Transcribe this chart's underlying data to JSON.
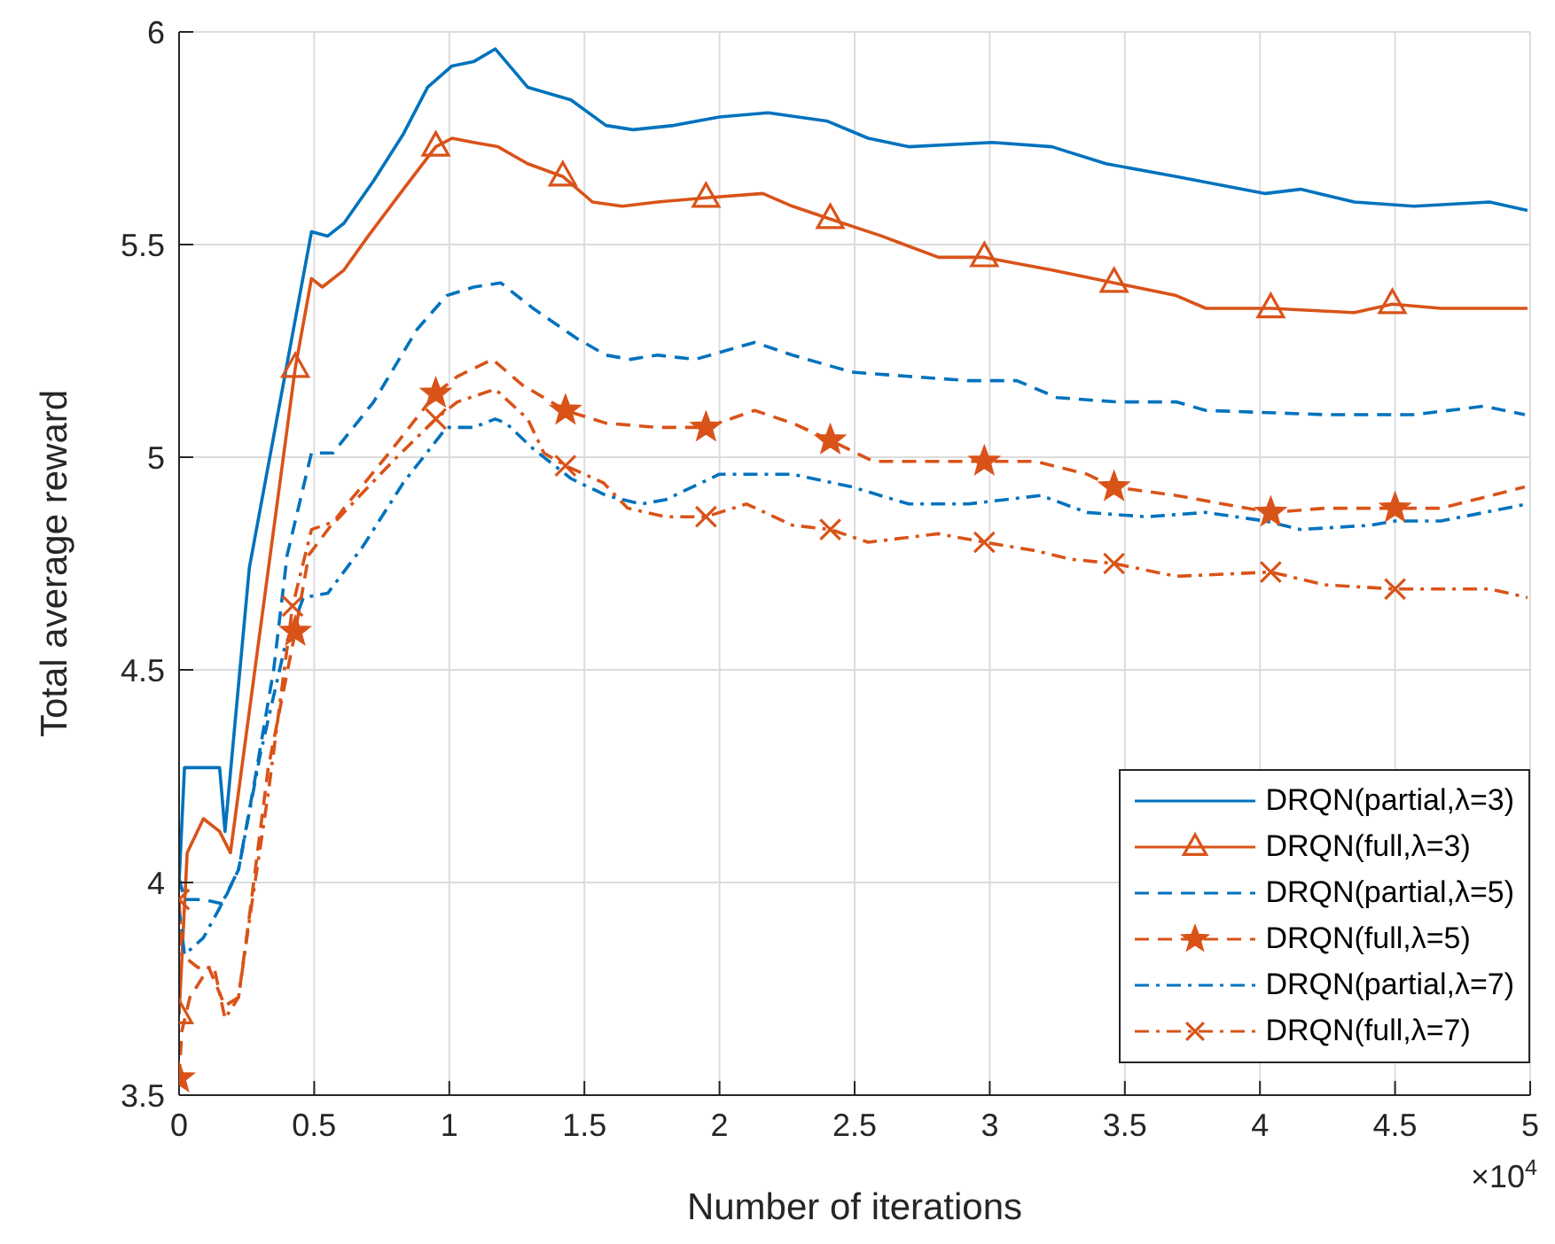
{
  "chart_data": {
    "type": "line",
    "xlabel": "Number of iterations",
    "ylabel": "Total average reward",
    "annotations": [
      "×10$^{4}$"
    ],
    "xlim": [
      0,
      5
    ],
    "xticks": [
      0,
      0.5,
      1,
      1.5,
      2,
      2.5,
      3,
      3.5,
      4,
      4.5,
      5
    ],
    "ylim": [
      3.5,
      6
    ],
    "yticks": [
      3.5,
      4,
      4.5,
      5,
      5.5,
      6
    ],
    "grid": true,
    "legend": "bottom right",
    "series": [
      {
        "name": "DRQN(partial,λ=3)",
        "color": "#0072bd",
        "line_style": "solid",
        "x": [
          0,
          0.02,
          0.15,
          0.17,
          0.26,
          0.49,
          0.55,
          0.61,
          0.72,
          0.83,
          0.92,
          1.01,
          1.09,
          1.17,
          1.29,
          1.45,
          1.58,
          1.68,
          1.83,
          2.0,
          2.18,
          2.4,
          2.55,
          2.7,
          3.01,
          3.23,
          3.43,
          3.69,
          4.02,
          4.15,
          4.35,
          4.57,
          4.85,
          4.99
        ],
        "values": [
          4.0,
          4.27,
          4.27,
          4.12,
          4.74,
          5.53,
          5.52,
          5.55,
          5.65,
          5.76,
          5.87,
          5.92,
          5.93,
          5.96,
          5.87,
          5.84,
          5.78,
          5.77,
          5.78,
          5.8,
          5.81,
          5.79,
          5.75,
          5.73,
          5.74,
          5.73,
          5.69,
          5.66,
          5.62,
          5.63,
          5.6,
          5.59,
          5.6,
          5.58
        ]
      },
      {
        "name": "DRQN(full,λ=3)",
        "color": "#d95319",
        "line_style": "solid",
        "x": [
          0,
          0.03,
          0.09,
          0.15,
          0.19,
          0.43,
          0.49,
          0.53,
          0.61,
          0.7,
          0.83,
          0.95,
          1.01,
          1.09,
          1.18,
          1.29,
          1.42,
          1.53,
          1.64,
          1.77,
          1.95,
          2.16,
          2.27,
          2.41,
          2.6,
          2.81,
          2.98,
          3.23,
          3.46,
          3.69,
          3.8,
          4.04,
          4.35,
          4.49,
          4.67,
          4.99
        ],
        "values": [
          3.69,
          4.07,
          4.15,
          4.12,
          4.07,
          5.21,
          5.42,
          5.4,
          5.44,
          5.52,
          5.63,
          5.73,
          5.75,
          5.74,
          5.73,
          5.69,
          5.66,
          5.6,
          5.59,
          5.6,
          5.61,
          5.62,
          5.59,
          5.56,
          5.52,
          5.47,
          5.47,
          5.44,
          5.41,
          5.38,
          5.35,
          5.35,
          5.34,
          5.36,
          5.35,
          5.35
        ]
      },
      {
        "type": "scatter",
        "color": "#d95319",
        "marker": "triangle",
        "x": [
          0,
          0.43,
          0.95,
          1.42,
          1.95,
          2.41,
          2.98,
          3.46,
          4.04,
          4.49
        ],
        "values": [
          3.69,
          5.21,
          5.73,
          5.66,
          5.61,
          5.56,
          5.47,
          5.41,
          5.35,
          5.36
        ]
      },
      {
        "name": "DRQN(partial,λ=5)",
        "color": "#0072bd",
        "line_style": "dashed",
        "x": [
          0,
          0.02,
          0.09,
          0.16,
          0.22,
          0.28,
          0.35,
          0.4,
          0.49,
          0.57,
          0.72,
          0.88,
          0.99,
          1.09,
          1.19,
          1.31,
          1.47,
          1.58,
          1.67,
          1.77,
          1.91,
          2.13,
          2.27,
          2.49,
          2.7,
          2.92,
          3.1,
          3.25,
          3.47,
          3.69,
          3.8,
          4.24,
          4.57,
          4.83,
          4.98
        ],
        "values": [
          4.01,
          3.96,
          3.96,
          3.95,
          4.03,
          4.24,
          4.5,
          4.77,
          5.01,
          5.01,
          5.13,
          5.3,
          5.38,
          5.4,
          5.41,
          5.35,
          5.28,
          5.24,
          5.23,
          5.24,
          5.23,
          5.27,
          5.24,
          5.2,
          5.19,
          5.18,
          5.18,
          5.14,
          5.13,
          5.13,
          5.11,
          5.1,
          5.1,
          5.12,
          5.1
        ]
      },
      {
        "name": "DRQN(full,λ=5)",
        "color": "#d95319",
        "line_style": "dashed",
        "x": [
          0,
          0.01,
          0.04,
          0.11,
          0.17,
          0.22,
          0.26,
          0.33,
          0.43,
          0.48,
          0.61,
          0.79,
          0.95,
          1.03,
          1.16,
          1.27,
          1.43,
          1.58,
          1.77,
          1.95,
          2.13,
          2.27,
          2.41,
          2.57,
          2.81,
          2.98,
          3.17,
          3.36,
          3.46,
          3.69,
          4.04,
          4.24,
          4.5,
          4.67,
          4.98
        ],
        "values": [
          3.54,
          3.65,
          3.73,
          3.8,
          3.71,
          3.73,
          3.92,
          4.27,
          4.59,
          4.77,
          4.88,
          5.02,
          5.15,
          5.19,
          5.23,
          5.17,
          5.11,
          5.08,
          5.07,
          5.07,
          5.11,
          5.08,
          5.04,
          4.99,
          4.99,
          4.99,
          4.99,
          4.96,
          4.93,
          4.91,
          4.87,
          4.88,
          4.88,
          4.88,
          4.93
        ]
      },
      {
        "type": "scatter",
        "color": "#d95319",
        "marker": "star",
        "x": [
          0,
          0.43,
          0.95,
          1.43,
          1.95,
          2.41,
          2.98,
          3.46,
          4.04,
          4.5
        ],
        "values": [
          3.54,
          4.59,
          5.15,
          5.11,
          5.07,
          5.04,
          4.99,
          4.93,
          4.87,
          4.88
        ]
      },
      {
        "name": "DRQN(partial,λ=7)",
        "color": "#0072bd",
        "line_style": "dashdot",
        "x": [
          0,
          0.02,
          0.09,
          0.15,
          0.22,
          0.3,
          0.39,
          0.46,
          0.55,
          0.68,
          0.83,
          0.99,
          1.09,
          1.17,
          1.21,
          1.31,
          1.45,
          1.58,
          1.71,
          1.8,
          2.0,
          2.27,
          2.49,
          2.7,
          2.92,
          3.19,
          3.36,
          3.58,
          3.8,
          4.02,
          4.15,
          4.41,
          4.5,
          4.67,
          4.99
        ],
        "values": [
          3.94,
          3.83,
          3.87,
          3.94,
          4.03,
          4.3,
          4.55,
          4.67,
          4.68,
          4.79,
          4.94,
          5.07,
          5.07,
          5.09,
          5.08,
          5.02,
          4.95,
          4.91,
          4.89,
          4.9,
          4.96,
          4.96,
          4.93,
          4.89,
          4.89,
          4.91,
          4.87,
          4.86,
          4.87,
          4.85,
          4.83,
          4.84,
          4.85,
          4.85,
          4.89
        ]
      },
      {
        "name": "DRQN(full,λ=7)",
        "color": "#d95319",
        "line_style": "dashdot",
        "x": [
          0,
          0.01,
          0.07,
          0.13,
          0.17,
          0.22,
          0.26,
          0.33,
          0.42,
          0.49,
          0.58,
          0.79,
          0.95,
          1.03,
          1.17,
          1.29,
          1.35,
          1.43,
          1.57,
          1.66,
          1.8,
          1.95,
          2.1,
          2.27,
          2.41,
          2.55,
          2.81,
          2.98,
          3.17,
          3.3,
          3.46,
          3.69,
          4.04,
          4.24,
          4.5,
          4.85,
          4.99
        ],
        "values": [
          3.96,
          3.83,
          3.8,
          3.8,
          3.68,
          3.73,
          3.91,
          4.21,
          4.65,
          4.83,
          4.85,
          4.99,
          5.09,
          5.13,
          5.16,
          5.09,
          5.01,
          4.98,
          4.94,
          4.88,
          4.86,
          4.86,
          4.89,
          4.84,
          4.83,
          4.8,
          4.82,
          4.8,
          4.78,
          4.76,
          4.75,
          4.72,
          4.73,
          4.7,
          4.69,
          4.69,
          4.67
        ]
      },
      {
        "type": "scatter",
        "color": "#d95319",
        "marker": "cross",
        "x": [
          0,
          0.42,
          0.95,
          1.43,
          1.95,
          2.41,
          2.98,
          3.46,
          4.04,
          4.5
        ],
        "values": [
          3.96,
          4.65,
          5.09,
          4.98,
          4.86,
          4.83,
          4.8,
          4.75,
          4.73,
          4.69
        ]
      }
    ]
  }
}
